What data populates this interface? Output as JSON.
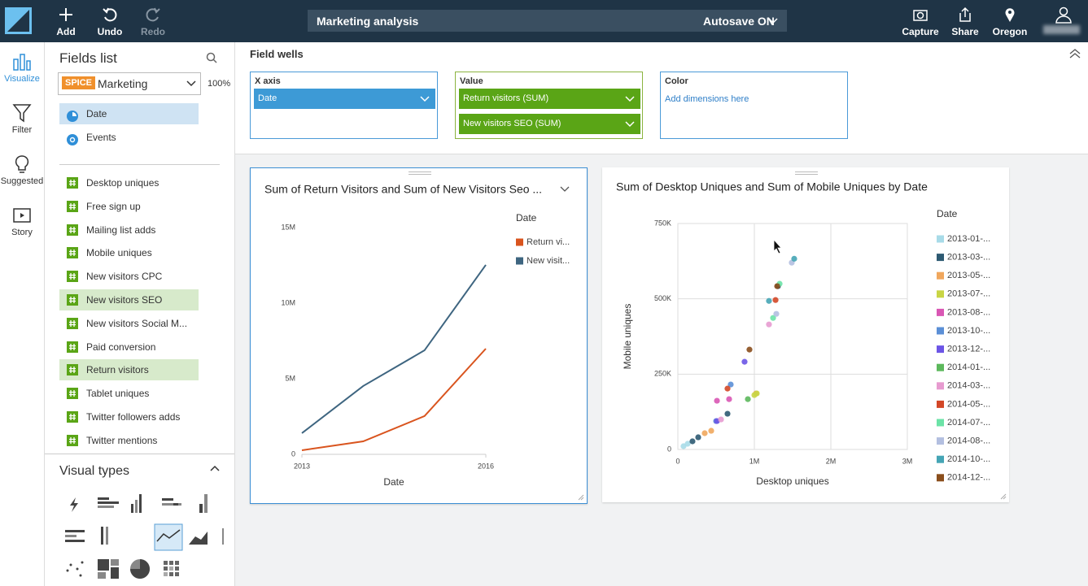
{
  "topbar": {
    "title": "Marketing analysis",
    "autosave": "Autosave ON",
    "buttons": [
      "Add",
      "Undo",
      "Redo"
    ],
    "right_buttons": [
      "Capture",
      "Share",
      "Oregon"
    ]
  },
  "sidenav": [
    "Visualize",
    "Filter",
    "Suggested",
    "Story"
  ],
  "fields": {
    "title": "Fields list",
    "badge": "SPICE",
    "dataset": "Marketing",
    "zoom": "100%",
    "dimensions": [
      {
        "label": "Date",
        "icon": "date",
        "selected": true
      },
      {
        "label": "Events",
        "icon": "text",
        "selected": false
      }
    ],
    "measures": [
      {
        "label": "Desktop uniques",
        "selected": false
      },
      {
        "label": "Free sign up",
        "selected": false
      },
      {
        "label": "Mailing list adds",
        "selected": false
      },
      {
        "label": "Mobile uniques",
        "selected": false
      },
      {
        "label": "New visitors CPC",
        "selected": false
      },
      {
        "label": "New visitors SEO",
        "selected": true
      },
      {
        "label": "New visitors Social M...",
        "selected": false
      },
      {
        "label": "Paid conversion",
        "selected": false
      },
      {
        "label": "Return visitors",
        "selected": true
      },
      {
        "label": "Tablet uniques",
        "selected": false
      },
      {
        "label": "Twitter followers adds",
        "selected": false
      },
      {
        "label": "Twitter mentions",
        "selected": false
      }
    ]
  },
  "visual_types": {
    "title": "Visual types"
  },
  "field_wells": {
    "title": "Field wells",
    "x_axis": {
      "title": "X axis",
      "items": [
        "Date"
      ]
    },
    "value": {
      "title": "Value",
      "items": [
        "Return visitors (SUM)",
        "New visitors SEO (SUM)"
      ]
    },
    "color": {
      "title": "Color",
      "placeholder": "Add dimensions here"
    }
  },
  "chart_data": [
    {
      "type": "line",
      "title": "Sum of Return Visitors and Sum of New Visitors Seo ...",
      "x_label": "Date",
      "legend_title": "Date",
      "x": [
        2013,
        2014,
        2015,
        2016
      ],
      "xlim": [
        2013,
        2016
      ],
      "xticks": [
        2013,
        2016
      ],
      "ylim": [
        0,
        15000000
      ],
      "yticks": [
        0,
        {
          "value": 5000000,
          "label": "5M"
        },
        {
          "value": 10000000,
          "label": "10M"
        },
        {
          "value": 15000000,
          "label": "15M"
        }
      ],
      "grid": false,
      "series": [
        {
          "name": "Return vi...",
          "color": "#d9541e",
          "values": [
            270000,
            860000,
            2530000,
            6990000
          ]
        },
        {
          "name": "New visit...",
          "color": "#3e6580",
          "values": [
            1400000,
            4520000,
            6880000,
            12530000
          ]
        }
      ]
    },
    {
      "type": "scatter",
      "title": "Sum of Desktop Uniques and Sum of Mobile Uniques by Date",
      "x_label": "Desktop uniques",
      "y_label": "Mobile uniques",
      "legend_title": "Date",
      "xlim": [
        0,
        3000000
      ],
      "xticks": [
        0,
        {
          "value": 1000000,
          "label": "1M"
        },
        {
          "value": 2000000,
          "label": "2M"
        },
        {
          "value": 3000000,
          "label": "3M"
        }
      ],
      "ylim": [
        0,
        750000
      ],
      "yticks": [
        0,
        {
          "value": 250000,
          "label": "250K"
        },
        {
          "value": 500000,
          "label": "500K"
        },
        {
          "value": 750000,
          "label": "750K"
        }
      ],
      "grid": true,
      "series": [
        {
          "name": "2013-01-...",
          "color": "#a8dbe8",
          "x": [
            74000,
            128000
          ],
          "values": [
            10800,
            18900
          ]
        },
        {
          "name": "2013-03-...",
          "color": "#2d5a72",
          "x": [
            191000,
            266000,
            649000,
            1309000
          ],
          "values": [
            27000,
            40400,
            118600,
            542000
          ]
        },
        {
          "name": "2013-05-...",
          "color": "#f0a75d",
          "x": [
            351000,
            436000,
            1021000
          ],
          "values": [
            54000,
            62000,
            186000
          ]
        },
        {
          "name": "2013-07-...",
          "color": "#c9d545",
          "x": [
            1032000,
            1000000
          ],
          "values": [
            186000,
            180600
          ]
        },
        {
          "name": "2013-08-...",
          "color": "#d957b4",
          "x": [
            511000,
            670000
          ],
          "values": [
            161700,
            167000
          ]
        },
        {
          "name": "2013-10-...",
          "color": "#5b8fd6",
          "x": [
            691000,
            500000
          ],
          "values": [
            215600,
            94300
          ]
        },
        {
          "name": "2013-12-...",
          "color": "#6c55e6",
          "x": [
            872000,
            511000
          ],
          "values": [
            291000,
            94300
          ]
        },
        {
          "name": "2014-01-...",
          "color": "#5cb85c",
          "x": [
            915000
          ],
          "values": [
            167000
          ]
        },
        {
          "name": "2014-03-...",
          "color": "#e79bd0",
          "x": [
            1191000,
            564000
          ],
          "values": [
            415000,
            99700
          ]
        },
        {
          "name": "2014-05-...",
          "color": "#d34727",
          "x": [
            649000,
            1277000
          ],
          "values": [
            202000,
            496000
          ]
        },
        {
          "name": "2014-07-...",
          "color": "#6ce3a7",
          "x": [
            1330000,
            1245000
          ],
          "values": [
            550000,
            436600
          ]
        },
        {
          "name": "2014-08-...",
          "color": "#b3bfe0",
          "x": [
            1287000,
            1489000
          ],
          "values": [
            450000,
            620000
          ]
        },
        {
          "name": "2014-10-...",
          "color": "#45a5b5",
          "x": [
            1521000,
            1191000
          ],
          "values": [
            633000,
            493000
          ]
        },
        {
          "name": "2014-12-...",
          "color": "#8a4e1c",
          "x": [
            1298000,
            936000
          ],
          "values": [
            542000,
            331500
          ]
        }
      ]
    }
  ]
}
